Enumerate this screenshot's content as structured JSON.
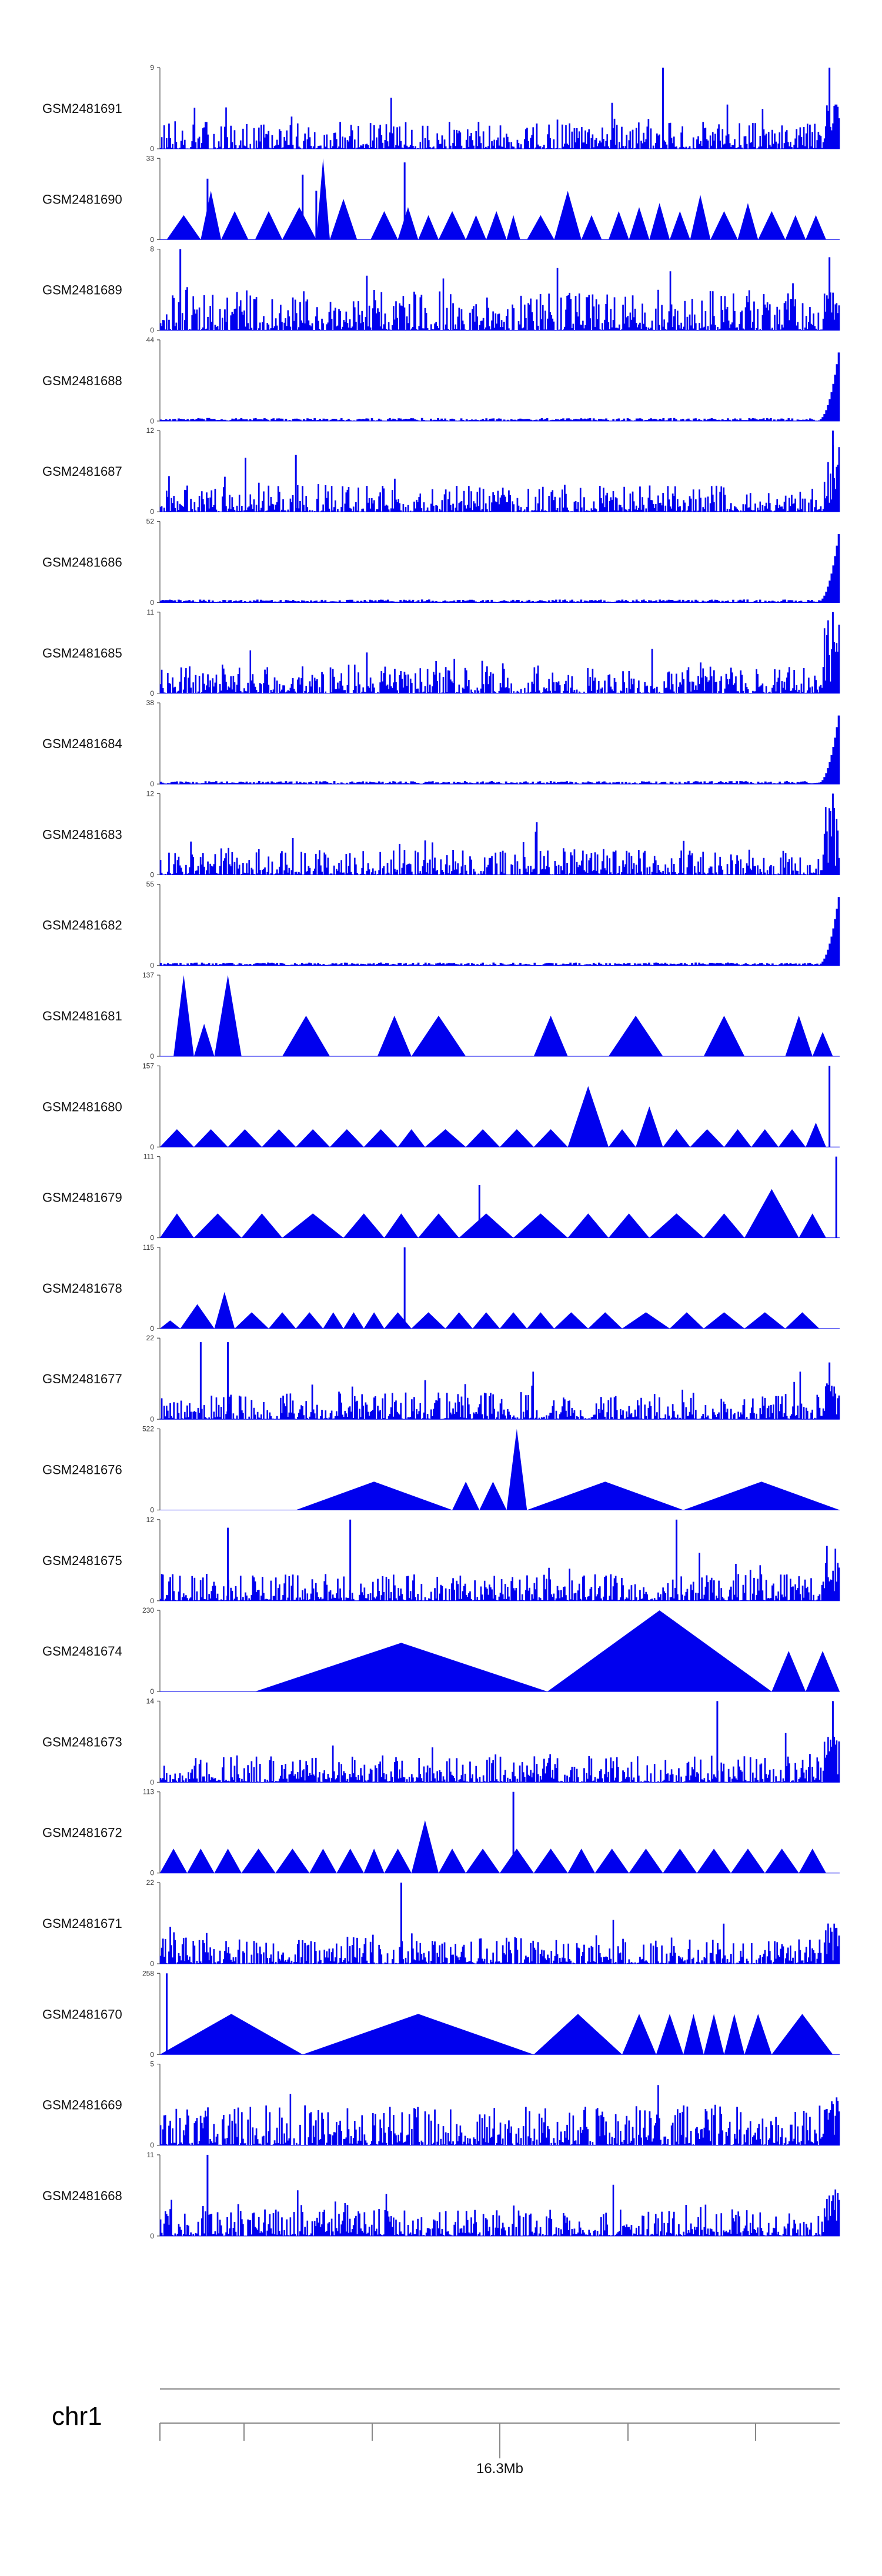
{
  "colors": {
    "signal": "#0000ee",
    "axis": "#555555",
    "ideogram": "#888888"
  },
  "chart_data": {
    "type": "area",
    "chromosome": "chr1",
    "position_ticks": [
      "",
      "",
      "",
      "16.3Mb",
      "",
      ""
    ],
    "tracks": [
      {
        "name": "GSM2481691",
        "ymax": 9,
        "ymin": 0,
        "pattern": "spiky",
        "spikes": [
          [
            0.74,
            1.0
          ],
          [
            0.985,
            1.0
          ]
        ],
        "tail": 0.6,
        "triangles": []
      },
      {
        "name": "GSM2481690",
        "ymax": 33,
        "ymin": 0,
        "pattern": "triangles",
        "spikes": [
          [
            0.07,
            0.75
          ],
          [
            0.21,
            0.8
          ],
          [
            0.23,
            0.6
          ],
          [
            0.36,
            0.95
          ]
        ],
        "tail": 0.0,
        "triangles": [
          [
            0.01,
            0.06,
            0.3
          ],
          [
            0.06,
            0.09,
            0.6
          ],
          [
            0.09,
            0.13,
            0.35
          ],
          [
            0.14,
            0.18,
            0.35
          ],
          [
            0.18,
            0.23,
            0.4
          ],
          [
            0.23,
            0.25,
            1.0
          ],
          [
            0.25,
            0.29,
            0.5
          ],
          [
            0.31,
            0.35,
            0.35
          ],
          [
            0.35,
            0.38,
            0.4
          ],
          [
            0.38,
            0.41,
            0.3
          ],
          [
            0.41,
            0.45,
            0.35
          ],
          [
            0.45,
            0.48,
            0.3
          ],
          [
            0.48,
            0.51,
            0.35
          ],
          [
            0.51,
            0.53,
            0.3
          ],
          [
            0.54,
            0.58,
            0.3
          ],
          [
            0.58,
            0.62,
            0.6
          ],
          [
            0.62,
            0.65,
            0.3
          ],
          [
            0.66,
            0.69,
            0.35
          ],
          [
            0.69,
            0.72,
            0.4
          ],
          [
            0.72,
            0.75,
            0.45
          ],
          [
            0.75,
            0.78,
            0.35
          ],
          [
            0.78,
            0.81,
            0.55
          ],
          [
            0.81,
            0.85,
            0.35
          ],
          [
            0.85,
            0.88,
            0.45
          ],
          [
            0.88,
            0.92,
            0.35
          ],
          [
            0.92,
            0.95,
            0.3
          ],
          [
            0.95,
            0.98,
            0.3
          ]
        ]
      },
      {
        "name": "GSM2481689",
        "ymax": 8,
        "ymin": 0,
        "pattern": "dense",
        "spikes": [
          [
            0.03,
            1.0
          ],
          [
            0.985,
            0.9
          ]
        ],
        "tail": 0.5,
        "triangles": []
      },
      {
        "name": "GSM2481688",
        "ymax": 44,
        "ymin": 0,
        "pattern": "flat",
        "spikes": [],
        "tail": 1.0,
        "triangles": []
      },
      {
        "name": "GSM2481687",
        "ymax": 12,
        "ymin": 0,
        "pattern": "spiky",
        "spikes": [
          [
            0.2,
            0.7
          ],
          [
            0.99,
            1.0
          ]
        ],
        "tail": 0.9,
        "triangles": []
      },
      {
        "name": "GSM2481686",
        "ymax": 52,
        "ymin": 0,
        "pattern": "flat",
        "spikes": [],
        "tail": 1.0,
        "triangles": []
      },
      {
        "name": "GSM2481685",
        "ymax": 11,
        "ymin": 0,
        "pattern": "spiky",
        "spikes": [
          [
            0.99,
            1.0
          ]
        ],
        "tail": 0.9,
        "triangles": []
      },
      {
        "name": "GSM2481684",
        "ymax": 38,
        "ymin": 0,
        "pattern": "flat",
        "spikes": [],
        "tail": 1.0,
        "triangles": []
      },
      {
        "name": "GSM2481683",
        "ymax": 12,
        "ymin": 0,
        "pattern": "spiky",
        "spikes": [
          [
            0.99,
            1.0
          ]
        ],
        "tail": 0.9,
        "triangles": []
      },
      {
        "name": "GSM2481682",
        "ymax": 55,
        "ymin": 0,
        "pattern": "flat",
        "spikes": [],
        "tail": 1.0,
        "triangles": []
      },
      {
        "name": "GSM2481681",
        "ymax": 137,
        "ymin": 0,
        "pattern": "triangles",
        "spikes": [],
        "tail": 0.0,
        "triangles": [
          [
            0.02,
            0.05,
            1.0
          ],
          [
            0.05,
            0.08,
            0.4
          ],
          [
            0.08,
            0.12,
            1.0
          ],
          [
            0.12,
            0.18,
            0.0
          ],
          [
            0.18,
            0.25,
            0.5
          ],
          [
            0.25,
            0.32,
            0.0
          ],
          [
            0.32,
            0.37,
            0.5
          ],
          [
            0.37,
            0.45,
            0.5
          ],
          [
            0.45,
            0.55,
            0.0
          ],
          [
            0.55,
            0.6,
            0.5
          ],
          [
            0.6,
            0.66,
            0.0
          ],
          [
            0.66,
            0.74,
            0.5
          ],
          [
            0.74,
            0.8,
            0.0
          ],
          [
            0.8,
            0.86,
            0.5
          ],
          [
            0.86,
            0.92,
            0.0
          ],
          [
            0.92,
            0.96,
            0.5
          ],
          [
            0.96,
            0.99,
            0.3
          ]
        ]
      },
      {
        "name": "GSM2481680",
        "ymax": 157,
        "ymin": 0,
        "pattern": "triangles",
        "spikes": [
          [
            0.985,
            1.0
          ]
        ],
        "tail": 0.0,
        "triangles": [
          [
            0.0,
            0.05,
            0.22
          ],
          [
            0.05,
            0.1,
            0.22
          ],
          [
            0.1,
            0.15,
            0.22
          ],
          [
            0.15,
            0.2,
            0.22
          ],
          [
            0.2,
            0.25,
            0.22
          ],
          [
            0.25,
            0.3,
            0.22
          ],
          [
            0.3,
            0.35,
            0.22
          ],
          [
            0.35,
            0.39,
            0.22
          ],
          [
            0.39,
            0.45,
            0.22
          ],
          [
            0.45,
            0.5,
            0.22
          ],
          [
            0.5,
            0.55,
            0.22
          ],
          [
            0.55,
            0.6,
            0.22
          ],
          [
            0.6,
            0.66,
            0.75
          ],
          [
            0.66,
            0.7,
            0.22
          ],
          [
            0.7,
            0.74,
            0.5
          ],
          [
            0.74,
            0.78,
            0.22
          ],
          [
            0.78,
            0.83,
            0.22
          ],
          [
            0.83,
            0.87,
            0.22
          ],
          [
            0.87,
            0.91,
            0.22
          ],
          [
            0.91,
            0.95,
            0.22
          ],
          [
            0.95,
            0.98,
            0.3
          ]
        ]
      },
      {
        "name": "GSM2481679",
        "ymax": 111,
        "ymin": 0,
        "pattern": "triangles",
        "spikes": [
          [
            0.47,
            0.65
          ],
          [
            0.995,
            1.0
          ]
        ],
        "tail": 0.0,
        "triangles": [
          [
            0.0,
            0.05,
            0.3
          ],
          [
            0.05,
            0.12,
            0.3
          ],
          [
            0.12,
            0.18,
            0.3
          ],
          [
            0.18,
            0.27,
            0.3
          ],
          [
            0.27,
            0.33,
            0.3
          ],
          [
            0.33,
            0.38,
            0.3
          ],
          [
            0.38,
            0.44,
            0.3
          ],
          [
            0.44,
            0.52,
            0.3
          ],
          [
            0.52,
            0.6,
            0.3
          ],
          [
            0.6,
            0.66,
            0.3
          ],
          [
            0.66,
            0.72,
            0.3
          ],
          [
            0.72,
            0.8,
            0.3
          ],
          [
            0.8,
            0.86,
            0.3
          ],
          [
            0.86,
            0.94,
            0.6
          ],
          [
            0.94,
            0.98,
            0.3
          ]
        ]
      },
      {
        "name": "GSM2481678",
        "ymax": 115,
        "ymin": 0,
        "pattern": "triangles",
        "spikes": [
          [
            0.36,
            1.0
          ]
        ],
        "tail": 0.0,
        "triangles": [
          [
            0.0,
            0.03,
            0.1
          ],
          [
            0.03,
            0.08,
            0.3
          ],
          [
            0.08,
            0.11,
            0.45
          ],
          [
            0.11,
            0.16,
            0.2
          ],
          [
            0.16,
            0.2,
            0.2
          ],
          [
            0.2,
            0.24,
            0.2
          ],
          [
            0.24,
            0.27,
            0.2
          ],
          [
            0.27,
            0.3,
            0.2
          ],
          [
            0.3,
            0.33,
            0.2
          ],
          [
            0.33,
            0.37,
            0.2
          ],
          [
            0.37,
            0.42,
            0.2
          ],
          [
            0.42,
            0.46,
            0.2
          ],
          [
            0.46,
            0.5,
            0.2
          ],
          [
            0.5,
            0.54,
            0.2
          ],
          [
            0.54,
            0.58,
            0.2
          ],
          [
            0.58,
            0.63,
            0.2
          ],
          [
            0.63,
            0.68,
            0.2
          ],
          [
            0.68,
            0.75,
            0.2
          ],
          [
            0.75,
            0.8,
            0.2
          ],
          [
            0.8,
            0.86,
            0.2
          ],
          [
            0.86,
            0.92,
            0.2
          ],
          [
            0.92,
            0.97,
            0.2
          ]
        ]
      },
      {
        "name": "GSM2481677",
        "ymax": 22,
        "ymin": 0,
        "pattern": "spiky",
        "spikes": [
          [
            0.06,
            0.95
          ],
          [
            0.1,
            0.95
          ],
          [
            0.985,
            0.7
          ]
        ],
        "tail": 0.5,
        "triangles": []
      },
      {
        "name": "GSM2481676",
        "ymax": 522,
        "ymin": 0,
        "pattern": "triangles",
        "spikes": [],
        "tail": 0.0,
        "triangles": [
          [
            0.2,
            0.43,
            0.35
          ],
          [
            0.43,
            0.47,
            0.35
          ],
          [
            0.47,
            0.51,
            0.35
          ],
          [
            0.51,
            0.54,
            1.0
          ],
          [
            0.54,
            0.77,
            0.35
          ],
          [
            0.77,
            1.0,
            0.35
          ]
        ]
      },
      {
        "name": "GSM2481675",
        "ymax": 12,
        "ymin": 0,
        "pattern": "spiky",
        "spikes": [
          [
            0.1,
            0.9
          ],
          [
            0.28,
            1.0
          ],
          [
            0.76,
            1.0
          ]
        ],
        "tail": 0.7,
        "triangles": []
      },
      {
        "name": "GSM2481674",
        "ymax": 230,
        "ymin": 0,
        "pattern": "triangles",
        "spikes": [],
        "tail": 0.0,
        "triangles": [
          [
            0.14,
            0.57,
            0.6
          ],
          [
            0.57,
            0.9,
            1.0
          ],
          [
            0.9,
            0.95,
            0.5
          ],
          [
            0.95,
            1.0,
            0.5
          ]
        ]
      },
      {
        "name": "GSM2481673",
        "ymax": 14,
        "ymin": 0,
        "pattern": "spiky",
        "spikes": [
          [
            0.82,
            1.0
          ],
          [
            0.99,
            1.0
          ]
        ],
        "tail": 0.6,
        "triangles": []
      },
      {
        "name": "GSM2481672",
        "ymax": 113,
        "ymin": 0,
        "pattern": "triangles",
        "spikes": [
          [
            0.52,
            1.0
          ]
        ],
        "tail": 0.0,
        "triangles": [
          [
            0.0,
            0.04,
            0.3
          ],
          [
            0.04,
            0.08,
            0.3
          ],
          [
            0.08,
            0.12,
            0.3
          ],
          [
            0.12,
            0.17,
            0.3
          ],
          [
            0.17,
            0.22,
            0.3
          ],
          [
            0.22,
            0.26,
            0.3
          ],
          [
            0.26,
            0.3,
            0.3
          ],
          [
            0.3,
            0.33,
            0.3
          ],
          [
            0.33,
            0.37,
            0.3
          ],
          [
            0.37,
            0.41,
            0.65
          ],
          [
            0.41,
            0.45,
            0.3
          ],
          [
            0.45,
            0.5,
            0.3
          ],
          [
            0.5,
            0.55,
            0.3
          ],
          [
            0.55,
            0.6,
            0.3
          ],
          [
            0.6,
            0.64,
            0.3
          ],
          [
            0.64,
            0.69,
            0.3
          ],
          [
            0.69,
            0.74,
            0.3
          ],
          [
            0.74,
            0.79,
            0.3
          ],
          [
            0.79,
            0.84,
            0.3
          ],
          [
            0.84,
            0.89,
            0.3
          ],
          [
            0.89,
            0.94,
            0.3
          ],
          [
            0.94,
            0.98,
            0.3
          ]
        ]
      },
      {
        "name": "GSM2481671",
        "ymax": 22,
        "ymin": 0,
        "pattern": "spiky",
        "spikes": [
          [
            0.355,
            1.0
          ]
        ],
        "tail": 0.5,
        "triangles": []
      },
      {
        "name": "GSM2481670",
        "ymax": 258,
        "ymin": 0,
        "pattern": "triangles",
        "spikes": [
          [
            0.01,
            1.0
          ]
        ],
        "tail": 0.0,
        "triangles": [
          [
            0.0,
            0.21,
            0.5
          ],
          [
            0.21,
            0.55,
            0.5
          ],
          [
            0.55,
            0.68,
            0.5
          ],
          [
            0.68,
            0.73,
            0.5
          ],
          [
            0.73,
            0.77,
            0.5
          ],
          [
            0.77,
            0.8,
            0.5
          ],
          [
            0.8,
            0.83,
            0.5
          ],
          [
            0.83,
            0.86,
            0.5
          ],
          [
            0.86,
            0.9,
            0.5
          ],
          [
            0.9,
            0.99,
            0.5
          ]
        ]
      },
      {
        "name": "GSM2481669",
        "ymax": 5,
        "ymin": 0,
        "pattern": "dense",
        "spikes": [],
        "tail": 0.6,
        "triangles": []
      },
      {
        "name": "GSM2481668",
        "ymax": 11,
        "ymin": 0,
        "pattern": "spiky",
        "spikes": [
          [
            0.07,
            1.0
          ]
        ],
        "tail": 0.6,
        "triangles": []
      }
    ]
  }
}
